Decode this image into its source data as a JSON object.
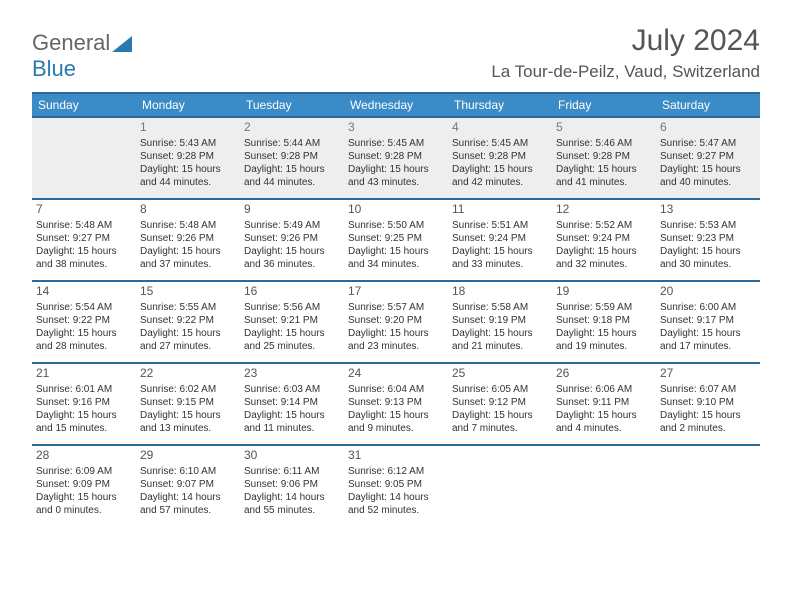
{
  "logo": {
    "part1": "General",
    "part2": "Blue"
  },
  "title": "July 2024",
  "location": "La Tour-de-Peilz, Vaud, Switzerland",
  "colors": {
    "header_bg": "#3b8bc6",
    "header_border": "#2a6a99",
    "logo_blue": "#2a7ab0",
    "text": "#555555",
    "empty_bg": "#eeeeee"
  },
  "weekdays": [
    "Sunday",
    "Monday",
    "Tuesday",
    "Wednesday",
    "Thursday",
    "Friday",
    "Saturday"
  ],
  "firstDayOffset": 1,
  "days": [
    {
      "n": 1,
      "sr": "5:43 AM",
      "ss": "9:28 PM",
      "dl": "15 hours and 44 minutes."
    },
    {
      "n": 2,
      "sr": "5:44 AM",
      "ss": "9:28 PM",
      "dl": "15 hours and 44 minutes."
    },
    {
      "n": 3,
      "sr": "5:45 AM",
      "ss": "9:28 PM",
      "dl": "15 hours and 43 minutes."
    },
    {
      "n": 4,
      "sr": "5:45 AM",
      "ss": "9:28 PM",
      "dl": "15 hours and 42 minutes."
    },
    {
      "n": 5,
      "sr": "5:46 AM",
      "ss": "9:28 PM",
      "dl": "15 hours and 41 minutes."
    },
    {
      "n": 6,
      "sr": "5:47 AM",
      "ss": "9:27 PM",
      "dl": "15 hours and 40 minutes."
    },
    {
      "n": 7,
      "sr": "5:48 AM",
      "ss": "9:27 PM",
      "dl": "15 hours and 38 minutes."
    },
    {
      "n": 8,
      "sr": "5:48 AM",
      "ss": "9:26 PM",
      "dl": "15 hours and 37 minutes."
    },
    {
      "n": 9,
      "sr": "5:49 AM",
      "ss": "9:26 PM",
      "dl": "15 hours and 36 minutes."
    },
    {
      "n": 10,
      "sr": "5:50 AM",
      "ss": "9:25 PM",
      "dl": "15 hours and 34 minutes."
    },
    {
      "n": 11,
      "sr": "5:51 AM",
      "ss": "9:24 PM",
      "dl": "15 hours and 33 minutes."
    },
    {
      "n": 12,
      "sr": "5:52 AM",
      "ss": "9:24 PM",
      "dl": "15 hours and 32 minutes."
    },
    {
      "n": 13,
      "sr": "5:53 AM",
      "ss": "9:23 PM",
      "dl": "15 hours and 30 minutes."
    },
    {
      "n": 14,
      "sr": "5:54 AM",
      "ss": "9:22 PM",
      "dl": "15 hours and 28 minutes."
    },
    {
      "n": 15,
      "sr": "5:55 AM",
      "ss": "9:22 PM",
      "dl": "15 hours and 27 minutes."
    },
    {
      "n": 16,
      "sr": "5:56 AM",
      "ss": "9:21 PM",
      "dl": "15 hours and 25 minutes."
    },
    {
      "n": 17,
      "sr": "5:57 AM",
      "ss": "9:20 PM",
      "dl": "15 hours and 23 minutes."
    },
    {
      "n": 18,
      "sr": "5:58 AM",
      "ss": "9:19 PM",
      "dl": "15 hours and 21 minutes."
    },
    {
      "n": 19,
      "sr": "5:59 AM",
      "ss": "9:18 PM",
      "dl": "15 hours and 19 minutes."
    },
    {
      "n": 20,
      "sr": "6:00 AM",
      "ss": "9:17 PM",
      "dl": "15 hours and 17 minutes."
    },
    {
      "n": 21,
      "sr": "6:01 AM",
      "ss": "9:16 PM",
      "dl": "15 hours and 15 minutes."
    },
    {
      "n": 22,
      "sr": "6:02 AM",
      "ss": "9:15 PM",
      "dl": "15 hours and 13 minutes."
    },
    {
      "n": 23,
      "sr": "6:03 AM",
      "ss": "9:14 PM",
      "dl": "15 hours and 11 minutes."
    },
    {
      "n": 24,
      "sr": "6:04 AM",
      "ss": "9:13 PM",
      "dl": "15 hours and 9 minutes."
    },
    {
      "n": 25,
      "sr": "6:05 AM",
      "ss": "9:12 PM",
      "dl": "15 hours and 7 minutes."
    },
    {
      "n": 26,
      "sr": "6:06 AM",
      "ss": "9:11 PM",
      "dl": "15 hours and 4 minutes."
    },
    {
      "n": 27,
      "sr": "6:07 AM",
      "ss": "9:10 PM",
      "dl": "15 hours and 2 minutes."
    },
    {
      "n": 28,
      "sr": "6:09 AM",
      "ss": "9:09 PM",
      "dl": "15 hours and 0 minutes."
    },
    {
      "n": 29,
      "sr": "6:10 AM",
      "ss": "9:07 PM",
      "dl": "14 hours and 57 minutes."
    },
    {
      "n": 30,
      "sr": "6:11 AM",
      "ss": "9:06 PM",
      "dl": "14 hours and 55 minutes."
    },
    {
      "n": 31,
      "sr": "6:12 AM",
      "ss": "9:05 PM",
      "dl": "14 hours and 52 minutes."
    }
  ],
  "labels": {
    "sunrise": "Sunrise:",
    "sunset": "Sunset:",
    "daylight": "Daylight:"
  }
}
